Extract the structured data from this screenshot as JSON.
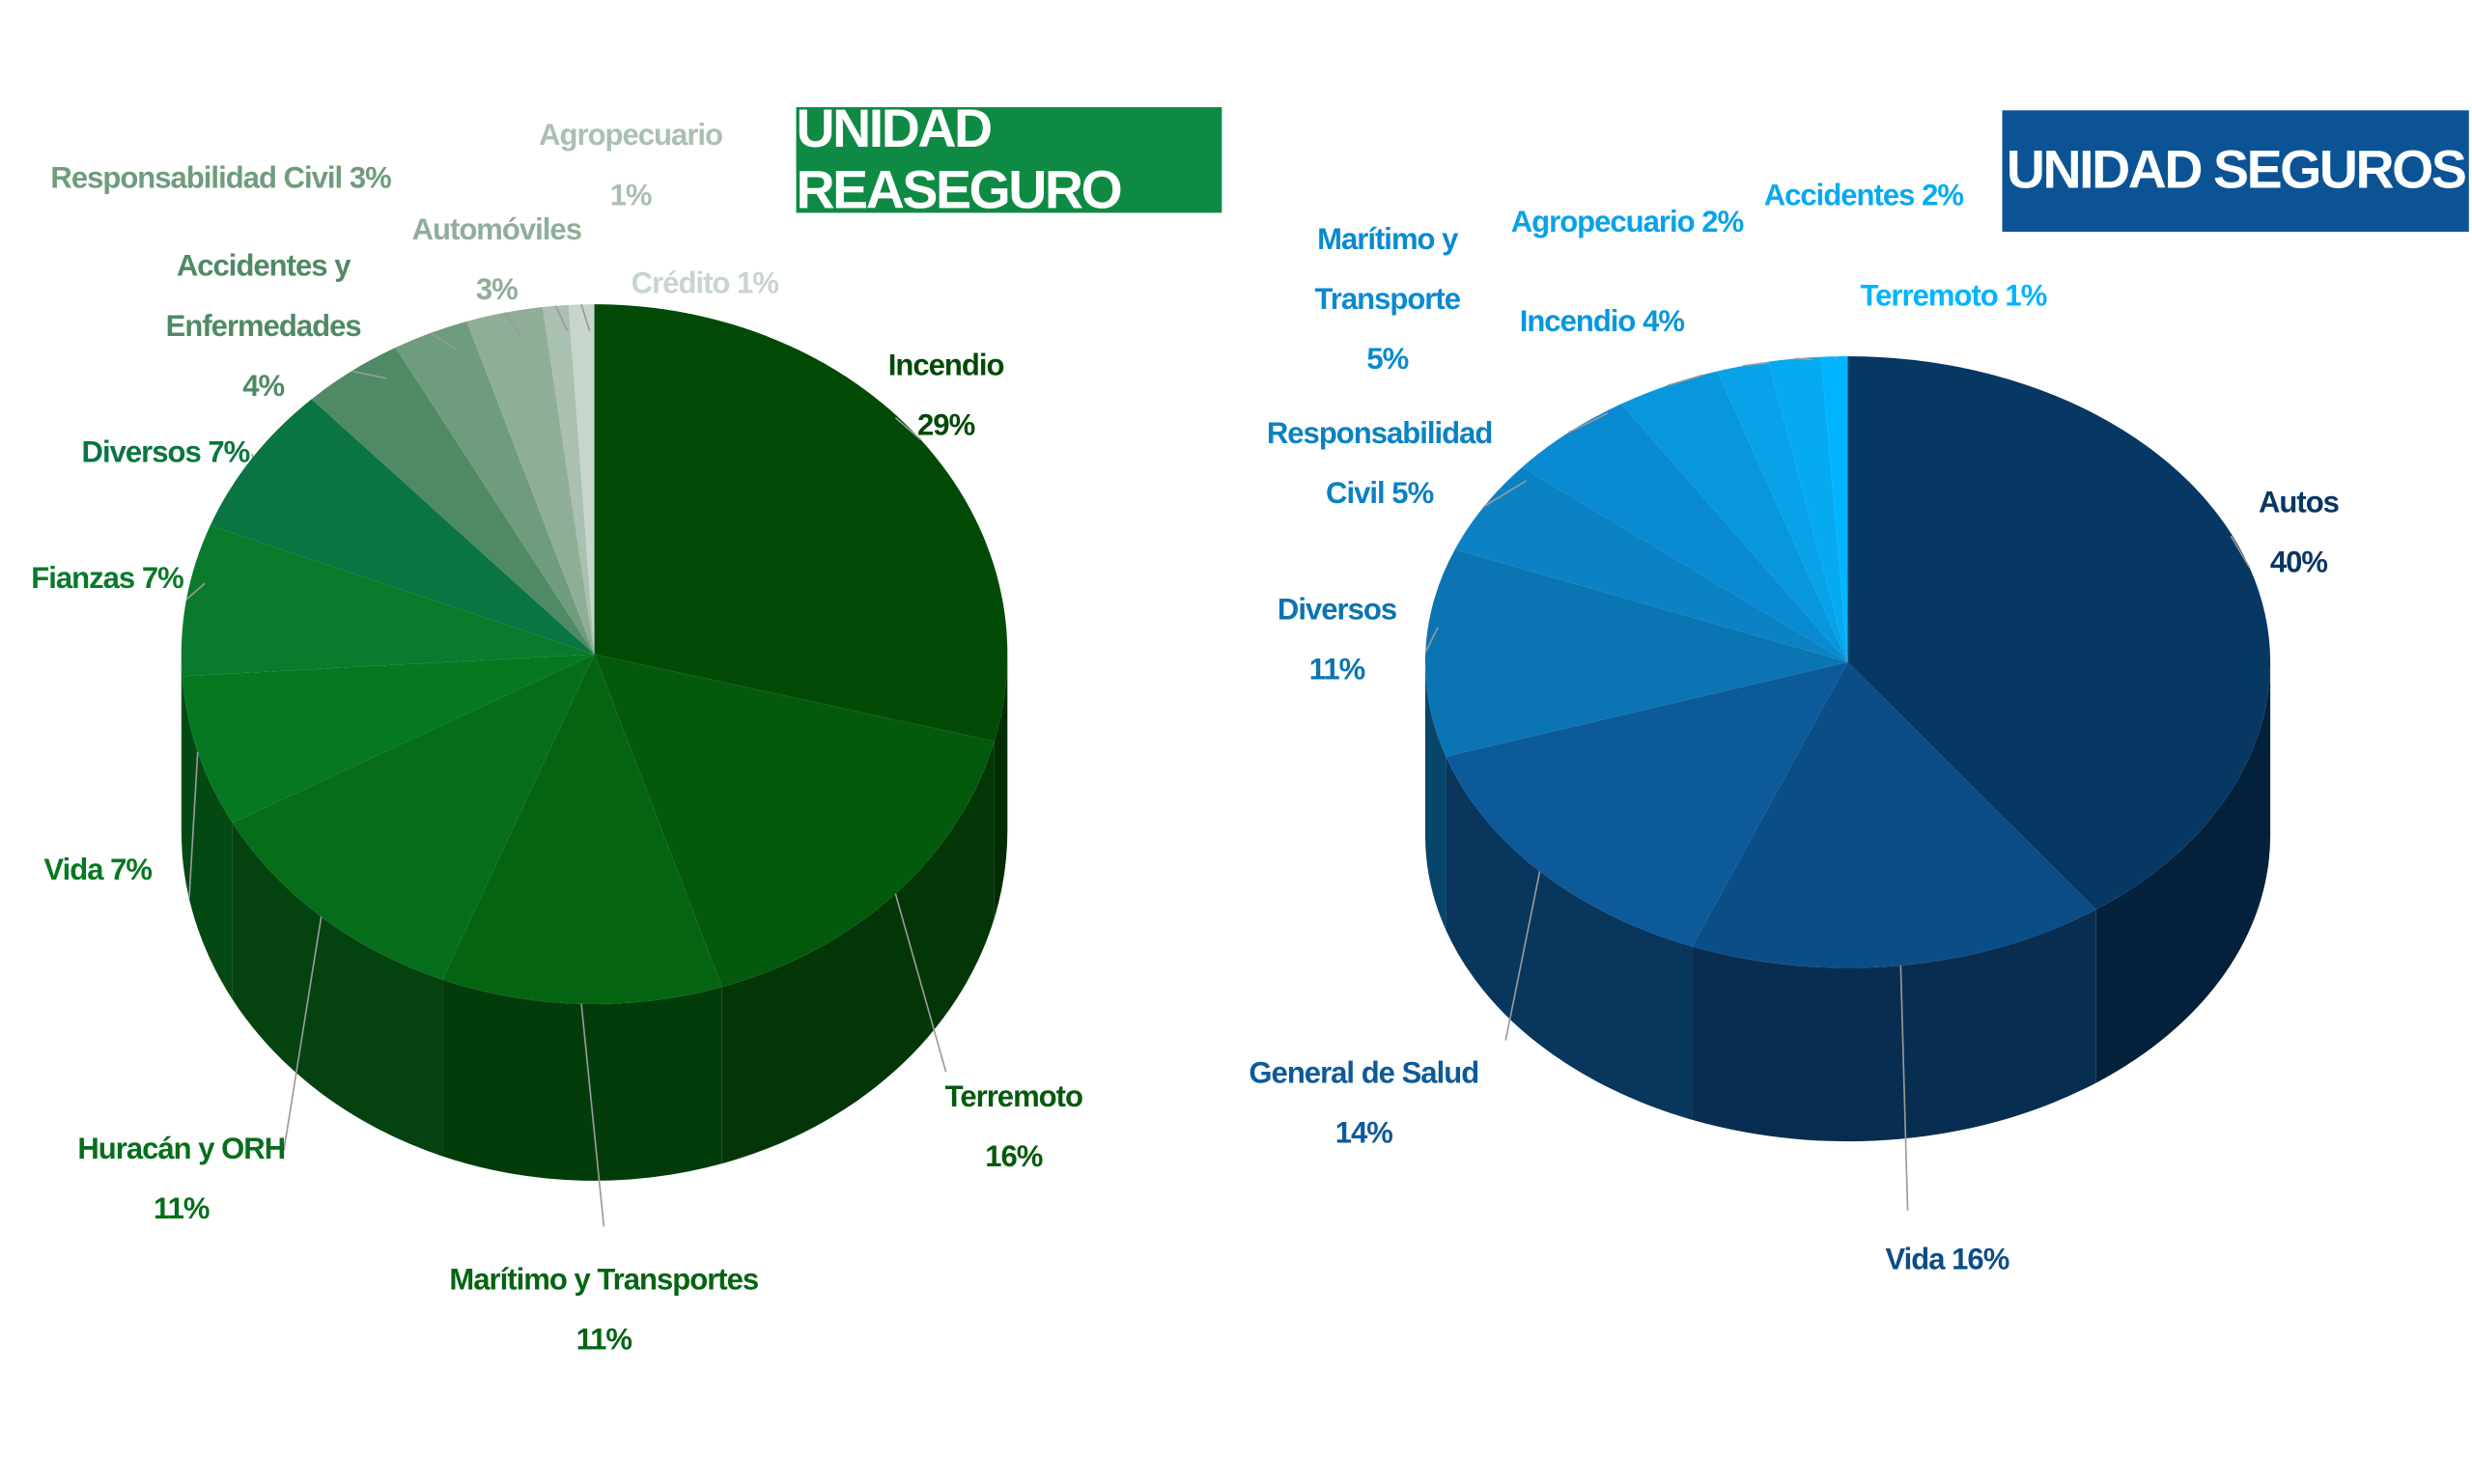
{
  "chart_data": [
    {
      "type": "pie",
      "title": "UNIDAD REASEGURO",
      "title_color": "#0f8a44",
      "categories": [
        "Incendio",
        "Terremoto",
        "Marítimo y Transportes",
        "Huracán y ORH",
        "Vida",
        "Fianzas",
        "Diversos",
        "Accidentes y Enfermedades",
        "Responsabilidad Civil",
        "Automóviles",
        "Agropecuario",
        "Crédito"
      ],
      "values": [
        29,
        16,
        11,
        11,
        7,
        7,
        7,
        4,
        3,
        3,
        1,
        1
      ],
      "value_labels": [
        "29%",
        "16%",
        "11%",
        "11%",
        "7%",
        "7%",
        "7%",
        "4%",
        "3%",
        "3%",
        "1%",
        "1%"
      ],
      "colors": [
        "#034a06",
        "#045a0c",
        "#056412",
        "#066e1a",
        "#077822",
        "#0a7a2c",
        "#0a7542",
        "#4f8a64",
        "#6f9c7d",
        "#8fae98",
        "#aac0b0",
        "#c8d5cc"
      ]
    },
    {
      "type": "pie",
      "title": "UNIDAD SEGUROS",
      "title_color": "#0b5394",
      "categories": [
        "Autos",
        "Vida",
        "General de Salud",
        "Diversos",
        "Responsabilidad Civil",
        "Marítimo y Transporte",
        "Incendio",
        "Agropecuario",
        "Accidentes",
        "Terremoto"
      ],
      "values": [
        40,
        16,
        14,
        11,
        5,
        5,
        4,
        2,
        2,
        1
      ],
      "value_labels": [
        "40%",
        "16%",
        "14%",
        "11%",
        "5%",
        "5%",
        "4%",
        "2%",
        "2%",
        "1%"
      ],
      "colors": [
        "#073763",
        "#0b4d87",
        "#0d5a9a",
        "#0b74b3",
        "#0a82c3",
        "#0a8ad0",
        "#0897dd",
        "#07a2e8",
        "#06aaf0",
        "#00b4ff"
      ]
    }
  ]
}
